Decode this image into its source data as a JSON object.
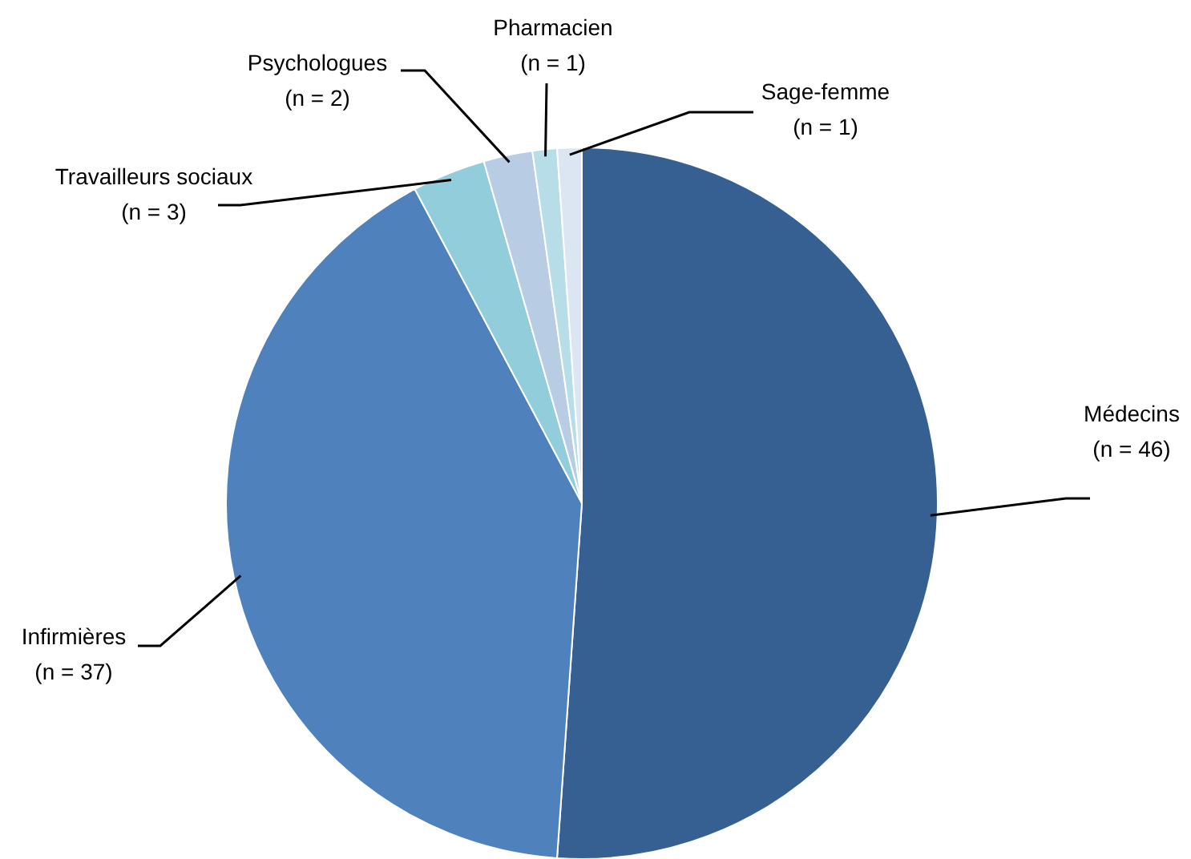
{
  "chart_data": {
    "type": "pie",
    "categories": [
      "Médecins",
      "Infirmières",
      "Travailleurs sociaux",
      "Psychologues",
      "Pharmacien",
      "Sage-femme"
    ],
    "values": [
      46,
      37,
      3,
      2,
      1,
      1
    ],
    "value_labels": [
      "(n = 46)",
      "(n = 37)",
      "(n = 3)",
      "(n = 2)",
      "(n = 1)",
      "(n = 1)"
    ],
    "colors": [
      "#366092",
      "#4f81bd",
      "#92cddc",
      "#b8cce4",
      "#b7dee8",
      "#dce6f2"
    ]
  }
}
